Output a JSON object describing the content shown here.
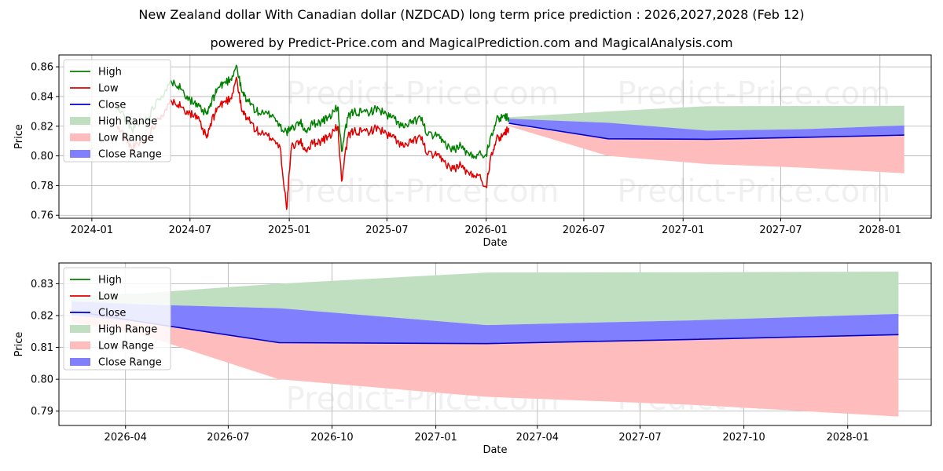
{
  "title": "New Zealand dollar With Canadian dollar (NZDCAD) long term price prediction : 2026,2027,2028 (Feb 12)",
  "subtitle": "powered by Predict-Price.com and MagicalPrediction.com and MagicalAnalysis.com",
  "watermark": "Predict-Price.com",
  "colors": {
    "high": "#008000",
    "low": "#e00000",
    "close": "#0000cc",
    "high_range": "#c0dfc0",
    "low_range": "#ffbcbc",
    "close_range": "#8080ff"
  },
  "chart_data": [
    {
      "type": "line",
      "name": "long-term",
      "xlabel": "Date",
      "ylabel": "Price",
      "xlim": [
        "2023-11-01",
        "2028-04-05"
      ],
      "ylim": [
        0.758,
        0.868
      ],
      "x_ticks": [
        {
          "date": "2024-01-01",
          "label": "2024-01"
        },
        {
          "date": "2024-07-01",
          "label": "2024-07"
        },
        {
          "date": "2025-01-01",
          "label": "2025-01"
        },
        {
          "date": "2025-07-01",
          "label": "2025-07"
        },
        {
          "date": "2026-01-01",
          "label": "2026-01"
        },
        {
          "date": "2026-07-01",
          "label": "2026-07"
        },
        {
          "date": "2027-01-01",
          "label": "2027-01"
        },
        {
          "date": "2027-07-01",
          "label": "2027-07"
        },
        {
          "date": "2028-01-01",
          "label": "2028-01"
        }
      ],
      "y_ticks": [
        0.76,
        0.78,
        0.8,
        0.82,
        0.84,
        0.86
      ],
      "y_tick_labels": [
        "0.76",
        "0.78",
        "0.80",
        "0.82",
        "0.84",
        "0.86"
      ],
      "legend": [
        "High",
        "Low",
        "Close",
        "High Range",
        "Low Range",
        "Close Range"
      ],
      "legend_position": "top-left",
      "history": {
        "x": [
          "2024-02-15",
          "2024-03-01",
          "2024-03-15",
          "2024-04-01",
          "2024-04-15",
          "2024-05-01",
          "2024-05-15",
          "2024-06-01",
          "2024-06-15",
          "2024-07-01",
          "2024-07-15",
          "2024-08-01",
          "2024-08-10",
          "2024-08-20",
          "2024-09-01",
          "2024-09-15",
          "2024-09-25",
          "2024-10-05",
          "2024-10-15",
          "2024-11-01",
          "2024-11-15",
          "2024-12-01",
          "2024-12-15",
          "2024-12-27",
          "2025-01-05",
          "2025-01-20",
          "2025-02-01",
          "2025-02-15",
          "2025-03-01",
          "2025-03-15",
          "2025-04-01",
          "2025-04-08",
          "2025-04-20",
          "2025-05-01",
          "2025-05-15",
          "2025-06-01",
          "2025-06-15",
          "2025-07-01",
          "2025-07-15",
          "2025-08-01",
          "2025-08-15",
          "2025-09-01",
          "2025-09-15",
          "2025-10-01",
          "2025-10-15",
          "2025-11-01",
          "2025-11-15",
          "2025-12-01",
          "2025-12-15",
          "2026-01-01",
          "2026-01-10",
          "2026-01-20",
          "2026-02-01",
          "2026-02-12"
        ],
        "high": [
          0.833,
          0.827,
          0.818,
          0.822,
          0.826,
          0.838,
          0.843,
          0.851,
          0.845,
          0.838,
          0.833,
          0.828,
          0.836,
          0.845,
          0.849,
          0.852,
          0.861,
          0.843,
          0.838,
          0.83,
          0.828,
          0.828,
          0.82,
          0.816,
          0.818,
          0.823,
          0.817,
          0.822,
          0.823,
          0.826,
          0.833,
          0.803,
          0.826,
          0.83,
          0.829,
          0.83,
          0.832,
          0.827,
          0.825,
          0.819,
          0.822,
          0.826,
          0.814,
          0.813,
          0.809,
          0.804,
          0.807,
          0.8,
          0.801,
          0.801,
          0.814,
          0.824,
          0.827,
          0.826
        ],
        "low": [
          0.82,
          0.814,
          0.805,
          0.809,
          0.813,
          0.825,
          0.83,
          0.838,
          0.833,
          0.829,
          0.825,
          0.812,
          0.823,
          0.832,
          0.836,
          0.839,
          0.853,
          0.83,
          0.826,
          0.817,
          0.814,
          0.812,
          0.806,
          0.764,
          0.806,
          0.81,
          0.804,
          0.809,
          0.81,
          0.813,
          0.82,
          0.783,
          0.813,
          0.817,
          0.816,
          0.817,
          0.819,
          0.814,
          0.812,
          0.806,
          0.809,
          0.813,
          0.801,
          0.8,
          0.796,
          0.791,
          0.794,
          0.787,
          0.788,
          0.779,
          0.801,
          0.811,
          0.814,
          0.819
        ]
      },
      "forecast": {
        "x": [
          "2026-02-12",
          "2026-08-15",
          "2027-02-15",
          "2027-08-15",
          "2028-02-15"
        ],
        "close": [
          0.822,
          0.8115,
          0.8112,
          0.8125,
          0.814
        ],
        "close_range_upper": [
          0.825,
          0.8223,
          0.817,
          0.818,
          0.8205
        ],
        "close_range_lower": [
          0.8215,
          0.8115,
          0.8112,
          0.8125,
          0.814
        ],
        "high_range_upper": [
          0.826,
          0.83,
          0.8335,
          0.8336,
          0.8338
        ],
        "high_range_lower": [
          0.822,
          0.822,
          0.817,
          0.818,
          0.8205
        ],
        "low_range_upper": [
          0.821,
          0.8115,
          0.8112,
          0.8125,
          0.814
        ],
        "low_range_lower": [
          0.82,
          0.8,
          0.7945,
          0.792,
          0.7883
        ]
      }
    },
    {
      "type": "line",
      "name": "forecast-zoom",
      "xlabel": "Date",
      "ylabel": "Price",
      "xlim": [
        "2026-02-01",
        "2028-03-15"
      ],
      "ylim": [
        0.7855,
        0.8365
      ],
      "x_ticks": [
        {
          "date": "2026-04-01",
          "label": "2026-04"
        },
        {
          "date": "2026-07-01",
          "label": "2026-07"
        },
        {
          "date": "2026-10-01",
          "label": "2026-10"
        },
        {
          "date": "2027-01-01",
          "label": "2027-01"
        },
        {
          "date": "2027-04-01",
          "label": "2027-04"
        },
        {
          "date": "2027-07-01",
          "label": "2027-07"
        },
        {
          "date": "2027-10-01",
          "label": "2027-10"
        },
        {
          "date": "2028-01-01",
          "label": "2028-01"
        }
      ],
      "y_ticks": [
        0.79,
        0.8,
        0.81,
        0.82,
        0.83
      ],
      "y_tick_labels": [
        "0.79",
        "0.80",
        "0.81",
        "0.82",
        "0.83"
      ],
      "legend": [
        "High",
        "Low",
        "Close",
        "High Range",
        "Low Range",
        "Close Range"
      ],
      "legend_position": "top-left",
      "forecast": {
        "x": [
          "2026-02-12",
          "2026-04-15",
          "2026-08-15",
          "2027-02-15",
          "2027-08-15",
          "2028-02-15"
        ],
        "close": [
          0.8215,
          0.818,
          0.8115,
          0.8112,
          0.8125,
          0.814
        ],
        "close_range_upper": [
          0.8245,
          0.8235,
          0.8223,
          0.817,
          0.8185,
          0.8205
        ],
        "close_range_lower": [
          0.82,
          0.818,
          0.8115,
          0.8112,
          0.8125,
          0.814
        ],
        "high_range_upper": [
          0.826,
          0.827,
          0.83,
          0.8335,
          0.8336,
          0.8338
        ],
        "high_range_lower": [
          0.8245,
          0.8235,
          0.8223,
          0.817,
          0.8185,
          0.8205
        ],
        "low_range_upper": [
          0.82,
          0.818,
          0.8115,
          0.8112,
          0.8125,
          0.814
        ],
        "low_range_lower": [
          0.818,
          0.814,
          0.8,
          0.7945,
          0.792,
          0.7883
        ]
      }
    }
  ]
}
